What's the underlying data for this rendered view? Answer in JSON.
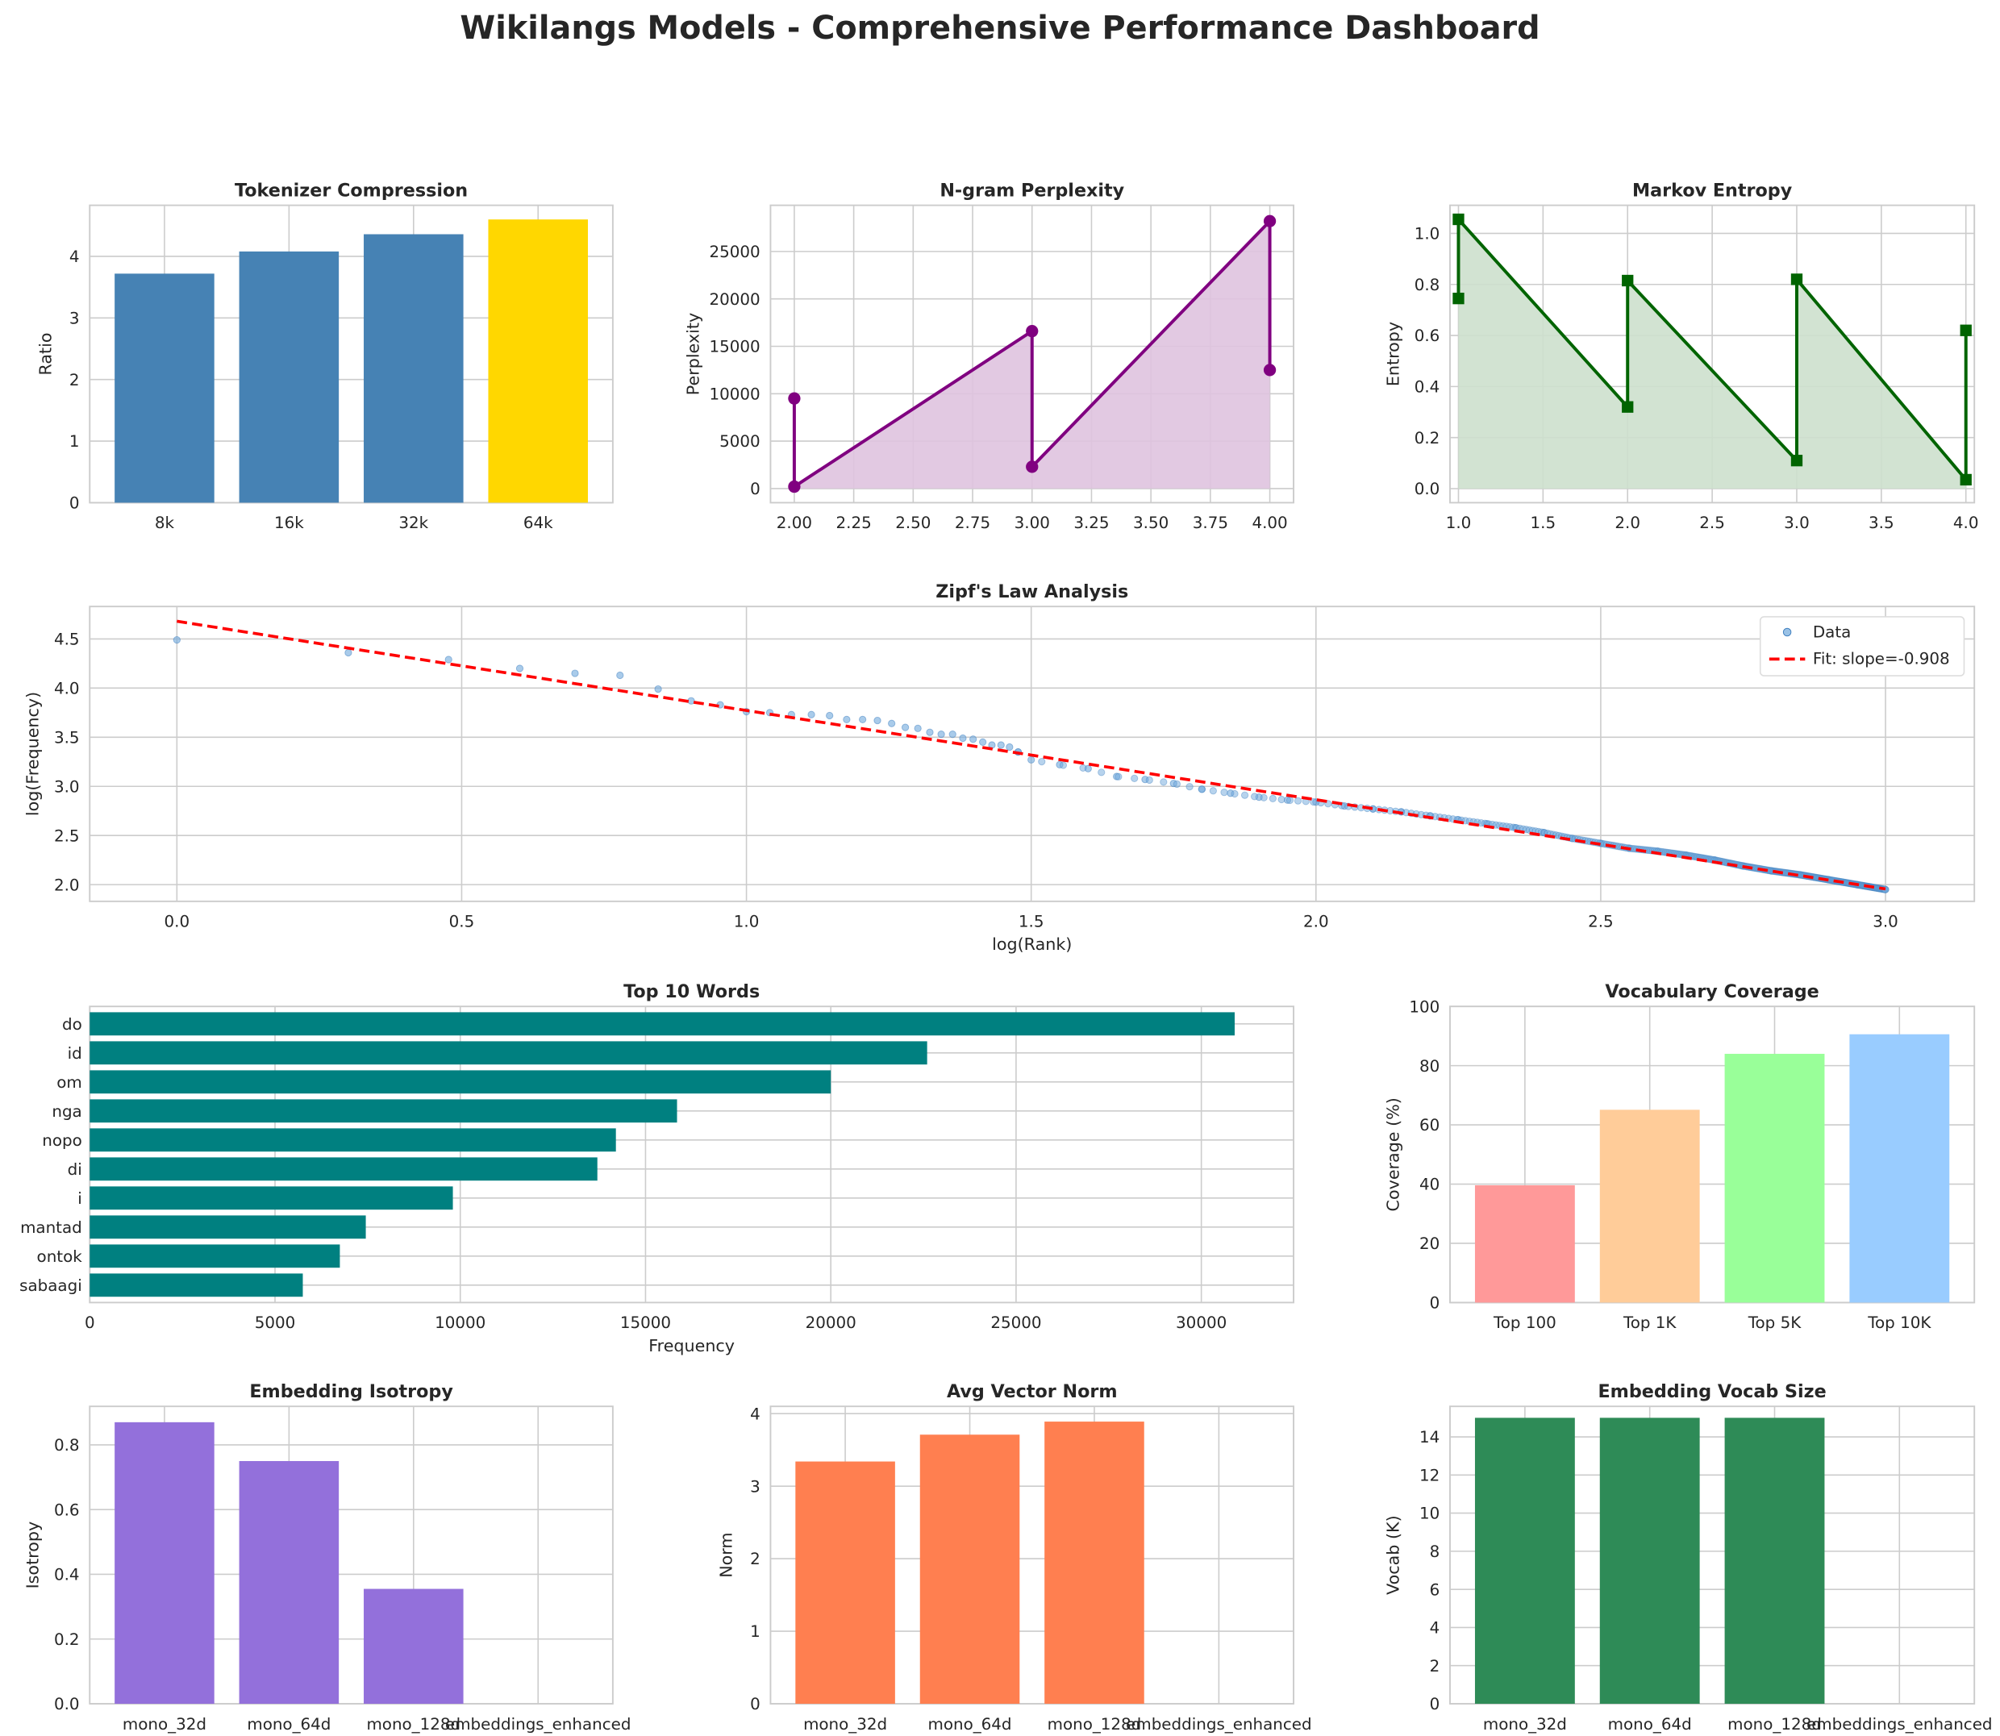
{
  "title": "Wikilangs Models - Comprehensive Performance Dashboard",
  "chart_data": [
    {
      "id": "tok",
      "type": "bar",
      "title": "Tokenizer Compression",
      "ylabel": "Ratio",
      "xlabel": "",
      "categories": [
        "8k",
        "16k",
        "32k",
        "64k"
      ],
      "values": [
        3.72,
        4.08,
        4.36,
        4.6
      ],
      "colors": [
        "#4682b4",
        "#4682b4",
        "#4682b4",
        "#ffd700"
      ],
      "ylim": [
        0,
        4.83
      ],
      "yticks": [
        0,
        1,
        2,
        3,
        4
      ],
      "grid": true
    },
    {
      "id": "ppl",
      "type": "area",
      "title": "N-gram Perplexity",
      "ylabel": "Perplexity",
      "xlabel": "",
      "x": [
        2,
        2,
        3,
        3,
        4,
        4
      ],
      "y": [
        9500,
        200,
        16600,
        2300,
        28200,
        12500
      ],
      "color": "#800080",
      "fill": "#dfc3df",
      "marker": "circle",
      "xlim": [
        1.9,
        4.1
      ],
      "ylim": [
        -1490,
        29870
      ],
      "xticks": [
        2.0,
        2.25,
        2.5,
        2.75,
        3.0,
        3.25,
        3.5,
        3.75,
        4.0
      ],
      "xticklabels": [
        "2.00",
        "2.25",
        "2.50",
        "2.75",
        "3.00",
        "3.25",
        "3.50",
        "3.75",
        "4.00"
      ],
      "yticks": [
        0,
        5000,
        10000,
        15000,
        20000,
        25000
      ],
      "grid": true
    },
    {
      "id": "ent",
      "type": "area",
      "title": "Markov Entropy",
      "ylabel": "Entropy",
      "xlabel": "",
      "x": [
        1,
        1,
        2,
        2,
        3,
        3,
        4,
        4
      ],
      "y": [
        0.745,
        1.055,
        0.32,
        0.815,
        0.11,
        0.82,
        0.035,
        0.62
      ],
      "color": "#006400",
      "fill": "#cde0cd",
      "marker": "square",
      "xlim": [
        0.95,
        4.05
      ],
      "ylim": [
        -0.055,
        1.11
      ],
      "xticks": [
        1.0,
        1.5,
        2.0,
        2.5,
        3.0,
        3.5,
        4.0
      ],
      "xticklabels": [
        "1.0",
        "1.5",
        "2.0",
        "2.5",
        "3.0",
        "3.5",
        "4.0"
      ],
      "yticks": [
        0,
        0.2,
        0.4,
        0.6,
        0.8,
        1.0
      ],
      "yticklabels": [
        "0.0",
        "0.2",
        "0.4",
        "0.6",
        "0.8",
        "1.0"
      ],
      "grid": true
    },
    {
      "id": "zipf",
      "type": "scatter",
      "title": "Zipf's Law Analysis",
      "xlabel": "log(Rank)",
      "ylabel": "log(Frequency)",
      "series": [
        {
          "name": "Data",
          "color": "#6fa8dc",
          "x": [
            0,
            0.301,
            0.477,
            0.602,
            0.699,
            0.778,
            0.845,
            0.903,
            0.954,
            1.0,
            1.041,
            1.079,
            1.114,
            1.146,
            1.176,
            1.204,
            1.23,
            1.255,
            1.279,
            1.301,
            1.322,
            1.342,
            1.362,
            1.38,
            1.398,
            1.415,
            1.431,
            1.447,
            1.462,
            1.477,
            1.5,
            1.55,
            1.6,
            1.65,
            1.7,
            1.75,
            1.8,
            1.85,
            1.9,
            1.95,
            2.0,
            2.05,
            2.1,
            2.15,
            2.2,
            2.25,
            2.3,
            2.35,
            2.4,
            2.45,
            2.5,
            2.55,
            2.6,
            2.65,
            2.7,
            2.75,
            2.8,
            2.85,
            2.9,
            2.95,
            3.0
          ],
          "y": [
            4.49,
            4.36,
            4.29,
            4.2,
            4.15,
            4.13,
            3.99,
            3.87,
            3.83,
            3.76,
            3.75,
            3.73,
            3.73,
            3.72,
            3.68,
            3.68,
            3.67,
            3.64,
            3.6,
            3.59,
            3.55,
            3.53,
            3.53,
            3.49,
            3.48,
            3.45,
            3.42,
            3.42,
            3.4,
            3.35,
            3.27,
            3.22,
            3.18,
            3.1,
            3.07,
            3.03,
            2.97,
            2.93,
            2.89,
            2.86,
            2.84,
            2.8,
            2.77,
            2.74,
            2.7,
            2.66,
            2.62,
            2.58,
            2.53,
            2.47,
            2.42,
            2.37,
            2.34,
            2.3,
            2.25,
            2.19,
            2.14,
            2.1,
            2.05,
            2.0,
            1.95
          ]
        },
        {
          "name": "Fit: slope=-0.908",
          "color": "#ff0000",
          "slope": -0.908,
          "intercept": 4.68,
          "dashed": true
        }
      ],
      "xlim": [
        -0.153,
        3.156
      ],
      "ylim": [
        1.83,
        4.83
      ],
      "xticks": [
        0,
        0.5,
        1.0,
        1.5,
        2.0,
        2.5,
        3.0
      ],
      "xticklabels": [
        "0.0",
        "0.5",
        "1.0",
        "1.5",
        "2.0",
        "2.5",
        "3.0"
      ],
      "yticks": [
        2.0,
        2.5,
        3.0,
        3.5,
        4.0,
        4.5
      ],
      "yticklabels": [
        "2.0",
        "2.5",
        "3.0",
        "3.5",
        "4.0",
        "4.5"
      ],
      "legend": "top-right",
      "grid": true
    },
    {
      "id": "words",
      "type": "barh",
      "title": "Top 10 Words",
      "xlabel": "Frequency",
      "ylabel": "",
      "categories": [
        "do",
        "id",
        "om",
        "nga",
        "nopo",
        "di",
        "i",
        "mantad",
        "ontok",
        "sabaagi"
      ],
      "values": [
        30900,
        22600,
        20000,
        15850,
        14200,
        13700,
        9800,
        7450,
        6750,
        5750
      ],
      "color": "#008080",
      "xlim": [
        0,
        32490
      ],
      "xticks": [
        0,
        5000,
        10000,
        15000,
        20000,
        25000,
        30000
      ],
      "grid": true
    },
    {
      "id": "cov",
      "type": "bar",
      "title": "Vocabulary Coverage",
      "ylabel": "Coverage (%)",
      "xlabel": "",
      "categories": [
        "Top 100",
        "Top 1K",
        "Top 5K",
        "Top 10K"
      ],
      "values": [
        39.6,
        65.1,
        84.0,
        90.6
      ],
      "colors": [
        "#ff9999",
        "#ffcc99",
        "#99ff99",
        "#99ccff"
      ],
      "ylim": [
        0,
        100
      ],
      "yticks": [
        0,
        20,
        40,
        60,
        80,
        100
      ],
      "grid": true
    },
    {
      "id": "iso",
      "type": "bar",
      "title": "Embedding Isotropy",
      "ylabel": "Isotropy",
      "xlabel": "",
      "categories": [
        "mono_32d",
        "mono_64d",
        "mono_128d",
        "embeddings_enhanced"
      ],
      "values": [
        0.87,
        0.75,
        0.355,
        0
      ],
      "colors": [
        "#9370db",
        "#9370db",
        "#9370db",
        "#9370db"
      ],
      "ylim": [
        0,
        0.919
      ],
      "yticks": [
        0,
        0.2,
        0.4,
        0.6,
        0.8
      ],
      "yticklabels": [
        "0.0",
        "0.2",
        "0.4",
        "0.6",
        "0.8"
      ],
      "grid": true
    },
    {
      "id": "norm",
      "type": "bar",
      "title": "Avg Vector Norm",
      "ylabel": "Norm",
      "xlabel": "",
      "categories": [
        "mono_32d",
        "mono_64d",
        "mono_128d",
        "embeddings_enhanced"
      ],
      "values": [
        3.34,
        3.71,
        3.89,
        0
      ],
      "colors": [
        "#ff7f50",
        "#ff7f50",
        "#ff7f50",
        "#ff7f50"
      ],
      "ylim": [
        0,
        4.1
      ],
      "yticks": [
        0,
        1,
        2,
        3,
        4
      ],
      "grid": true
    },
    {
      "id": "vocab",
      "type": "bar",
      "title": "Embedding Vocab Size",
      "ylabel": "Vocab (K)",
      "xlabel": "",
      "categories": [
        "mono_32d",
        "mono_64d",
        "mono_128d",
        "embeddings_enhanced"
      ],
      "values": [
        15,
        15,
        15,
        0
      ],
      "colors": [
        "#2e8b57",
        "#2e8b57",
        "#2e8b57",
        "#2e8b57"
      ],
      "ylim": [
        0,
        15.6
      ],
      "yticks": [
        0,
        2,
        4,
        6,
        8,
        10,
        12,
        14
      ],
      "grid": true
    }
  ]
}
